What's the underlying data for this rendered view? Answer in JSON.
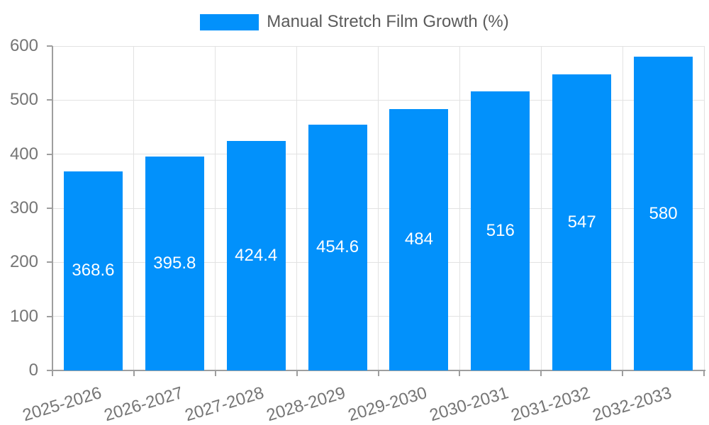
{
  "legend": {
    "label": "Manual Stretch Film Growth (%)"
  },
  "chart_data": {
    "type": "bar",
    "title": "",
    "series_name": "Manual Stretch Film Growth (%)",
    "categories": [
      "2025-2026",
      "2026-2027",
      "2027-2028",
      "2028-2029",
      "2029-2030",
      "2030-2031",
      "2031-2032",
      "2032-2033"
    ],
    "values": [
      368.6,
      395.8,
      424.4,
      454.6,
      484,
      516,
      547,
      580
    ],
    "value_labels": [
      "368.6",
      "395.8",
      "424.4",
      "454.6",
      "484",
      "516",
      "547",
      "580"
    ],
    "xlabel": "",
    "ylabel": "",
    "ylim": [
      0,
      600
    ],
    "yticks": [
      "0",
      "100",
      "200",
      "300",
      "400",
      "500",
      "600"
    ],
    "grid": true,
    "legend_position": "top",
    "colors": {
      "bar": "#0291fb",
      "grid": "#e2e2e2",
      "axis": "#9e9e9e",
      "tick_text": "#757575",
      "bar_label_text": "#ffffff",
      "legend_text": "#5b5b5b"
    }
  }
}
